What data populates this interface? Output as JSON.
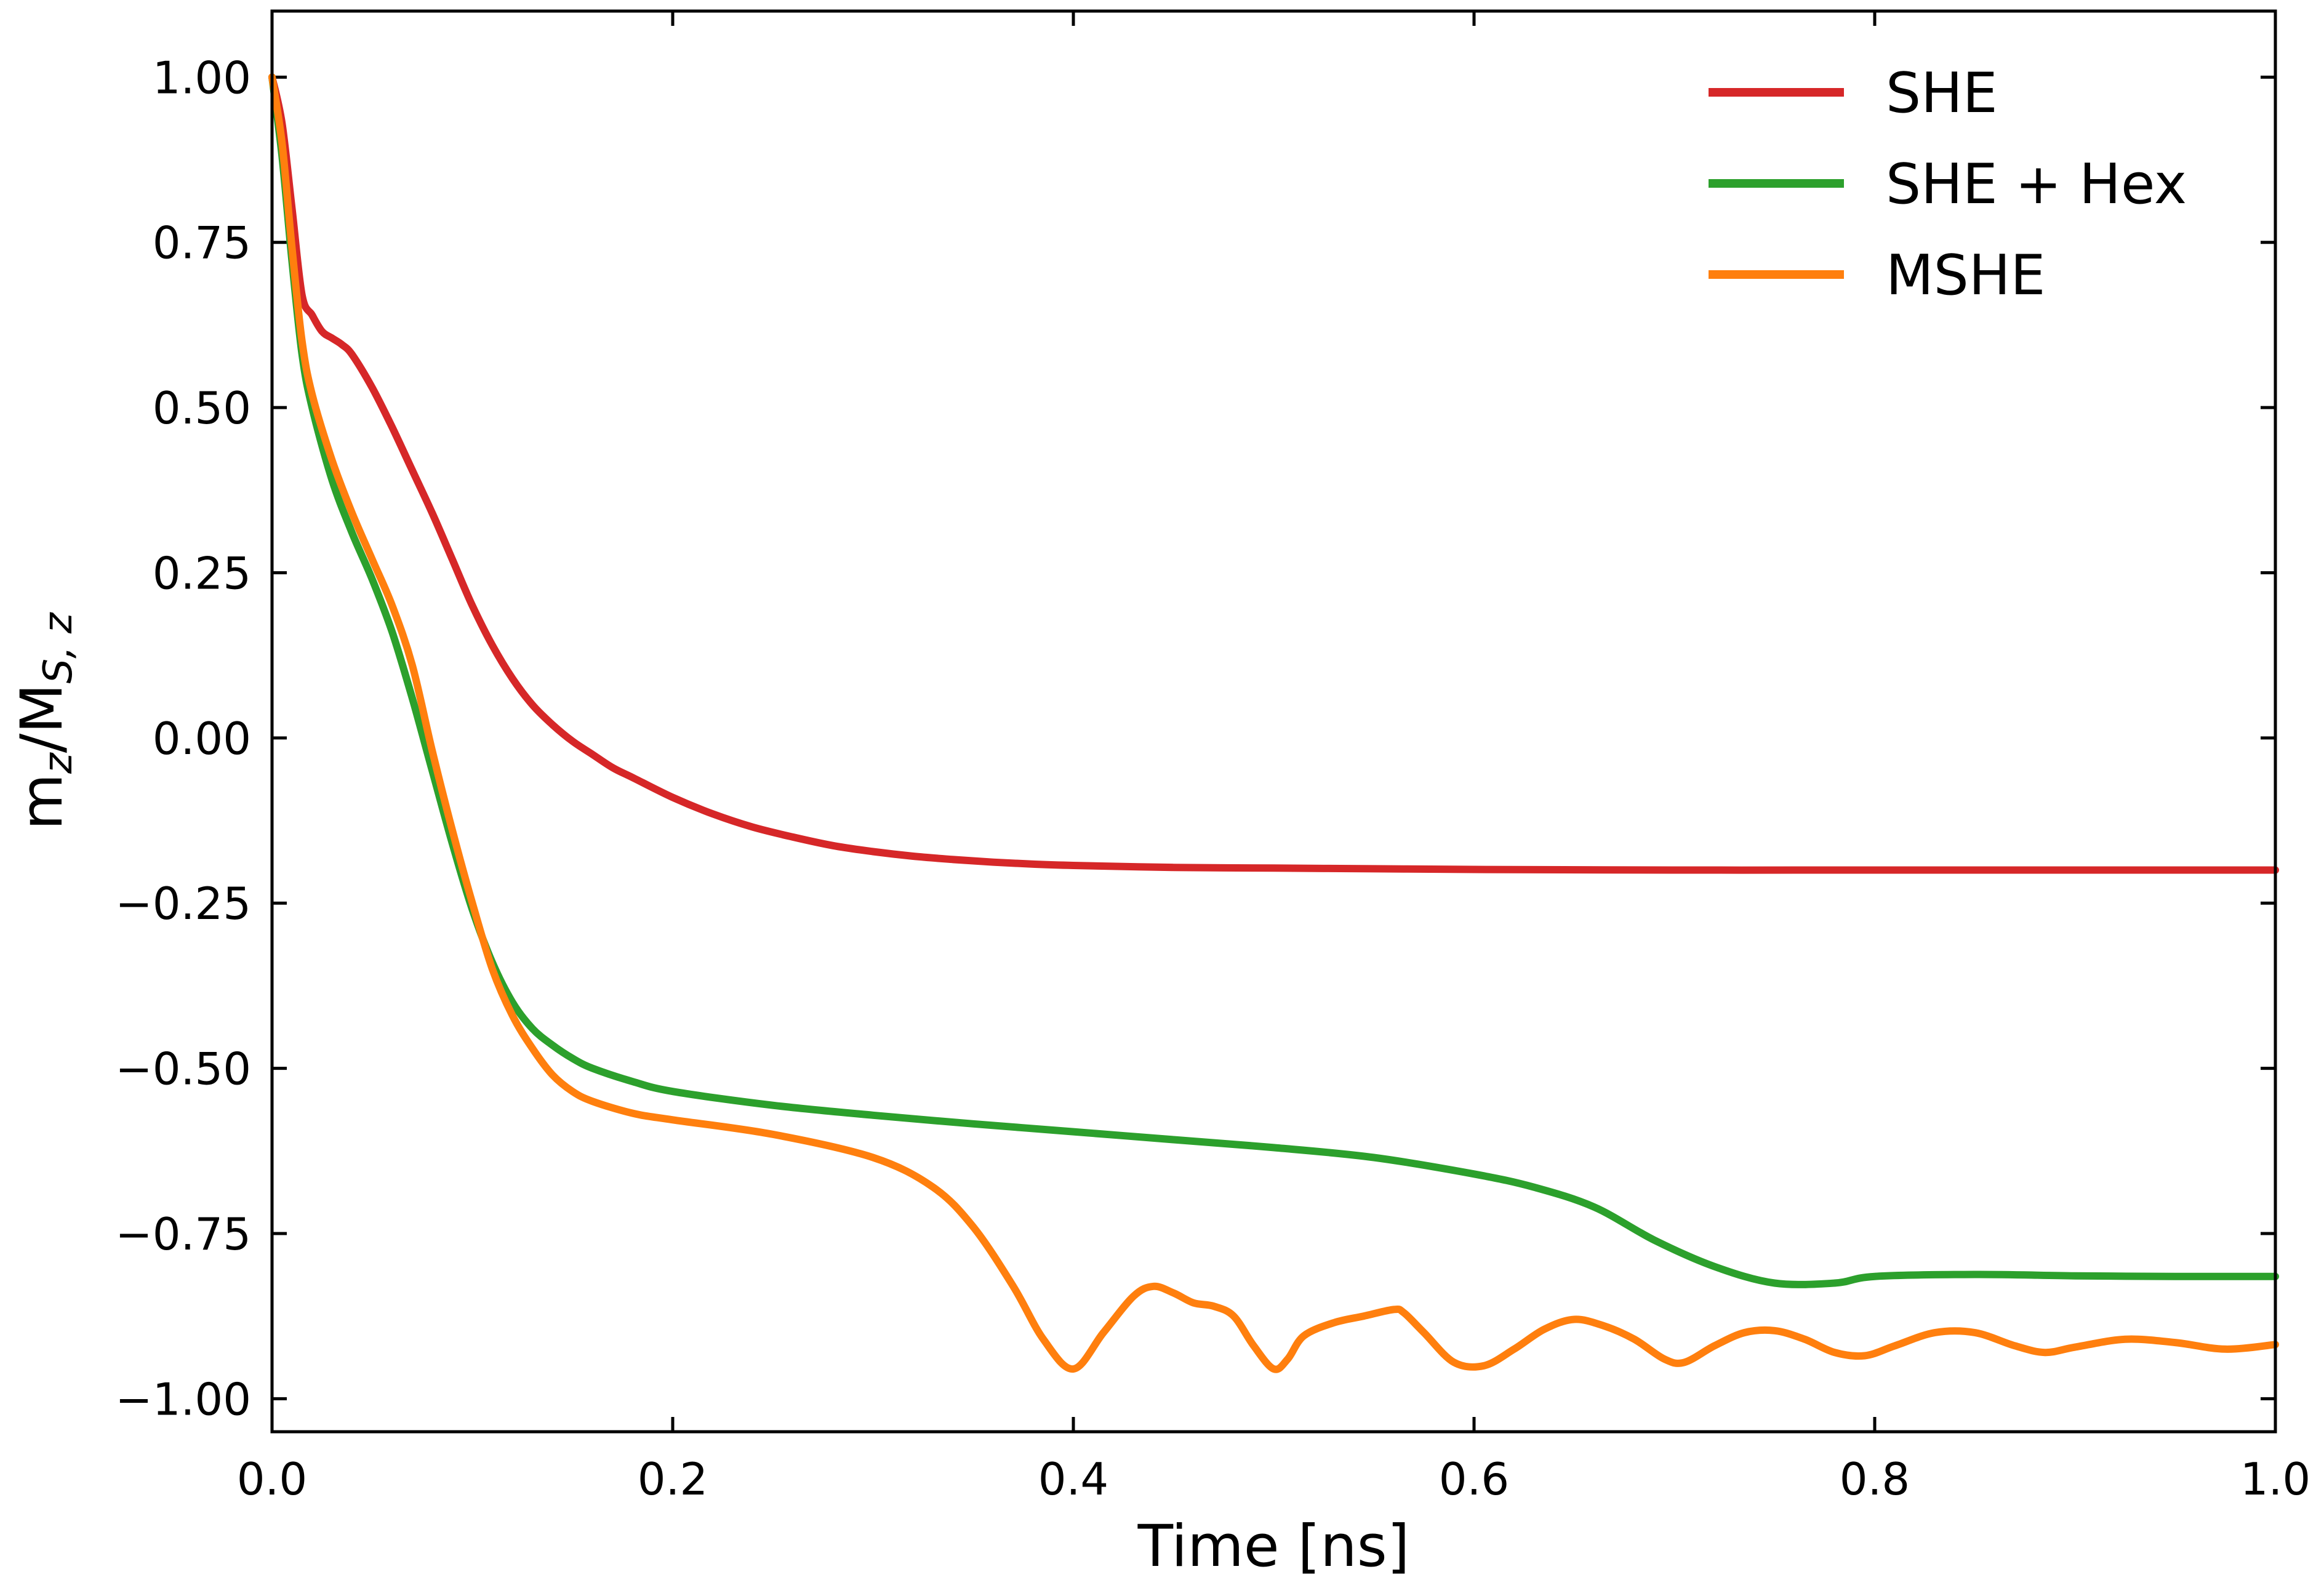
{
  "chart_data": {
    "type": "line",
    "title": "",
    "xlabel": "Time [ns]",
    "ylabel": {
      "main": "m",
      "main_sub": "z",
      "sep": "/M",
      "denom_sub": "S, z"
    },
    "xlim": [
      0.0,
      1.0
    ],
    "ylim": [
      -1.05,
      1.1
    ],
    "xticks": [
      0.0,
      0.2,
      0.4,
      0.6,
      0.8,
      1.0
    ],
    "xtick_labels": [
      "0.0",
      "0.2",
      "0.4",
      "0.6",
      "0.8",
      "1.0"
    ],
    "yticks": [
      1.0,
      0.75,
      0.5,
      0.25,
      0.0,
      -0.25,
      -0.5,
      -0.75,
      -1.0
    ],
    "ytick_labels": [
      "1.00",
      "0.75",
      "0.50",
      "0.25",
      "0.00",
      "−0.25",
      "−0.50",
      "−0.75",
      "−1.00"
    ],
    "grid": false,
    "legend_position": "top-right",
    "series": [
      {
        "name": "SHE",
        "color": "#d62728",
        "x": [
          0,
          0.005,
          0.01,
          0.015,
          0.02,
          0.025,
          0.03,
          0.035,
          0.04,
          0.05,
          0.06,
          0.07,
          0.08,
          0.09,
          0.1,
          0.11,
          0.12,
          0.13,
          0.14,
          0.15,
          0.16,
          0.17,
          0.18,
          0.2,
          0.22,
          0.24,
          0.26,
          0.28,
          0.3,
          0.32,
          0.34,
          0.36,
          0.38,
          0.4,
          0.45,
          0.5,
          0.55,
          0.6,
          0.7,
          0.8,
          0.9,
          1.0
        ],
        "y": [
          1.0,
          0.93,
          0.8,
          0.67,
          0.64,
          0.615,
          0.605,
          0.595,
          0.58,
          0.53,
          0.47,
          0.405,
          0.34,
          0.27,
          0.2,
          0.14,
          0.09,
          0.05,
          0.02,
          -0.005,
          -0.025,
          -0.045,
          -0.06,
          -0.09,
          -0.115,
          -0.135,
          -0.15,
          -0.163,
          -0.172,
          -0.179,
          -0.184,
          -0.188,
          -0.191,
          -0.193,
          -0.196,
          -0.197,
          -0.198,
          -0.199,
          -0.2,
          -0.2,
          -0.2,
          -0.2
        ]
      },
      {
        "name": "SHE + Hex",
        "color": "#2ca02c",
        "x": [
          0,
          0.005,
          0.01,
          0.015,
          0.02,
          0.03,
          0.04,
          0.05,
          0.06,
          0.07,
          0.08,
          0.09,
          0.1,
          0.11,
          0.12,
          0.13,
          0.14,
          0.15,
          0.16,
          0.18,
          0.2,
          0.25,
          0.3,
          0.35,
          0.4,
          0.45,
          0.5,
          0.55,
          0.6,
          0.63,
          0.66,
          0.69,
          0.72,
          0.75,
          0.78,
          0.8,
          0.85,
          0.9,
          0.95,
          1.0
        ],
        "y": [
          1.0,
          0.88,
          0.72,
          0.58,
          0.5,
          0.39,
          0.31,
          0.24,
          0.16,
          0.06,
          -0.05,
          -0.16,
          -0.26,
          -0.34,
          -0.4,
          -0.44,
          -0.465,
          -0.485,
          -0.5,
          -0.52,
          -0.535,
          -0.556,
          -0.571,
          -0.584,
          -0.596,
          -0.608,
          -0.62,
          -0.635,
          -0.66,
          -0.68,
          -0.71,
          -0.76,
          -0.8,
          -0.825,
          -0.825,
          -0.815,
          -0.812,
          -0.814,
          -0.815,
          -0.815
        ]
      },
      {
        "name": "MSHE",
        "color": "#ff7f0e",
        "x": [
          0,
          0.005,
          0.01,
          0.015,
          0.02,
          0.03,
          0.04,
          0.05,
          0.06,
          0.07,
          0.08,
          0.09,
          0.1,
          0.11,
          0.12,
          0.13,
          0.14,
          0.15,
          0.16,
          0.18,
          0.2,
          0.25,
          0.3,
          0.33,
          0.35,
          0.37,
          0.385,
          0.4,
          0.415,
          0.43,
          0.44,
          0.45,
          0.46,
          0.47,
          0.48,
          0.49,
          0.5,
          0.507,
          0.515,
          0.53,
          0.545,
          0.56,
          0.565,
          0.575,
          0.59,
          0.605,
          0.62,
          0.635,
          0.65,
          0.665,
          0.68,
          0.695,
          0.705,
          0.72,
          0.735,
          0.75,
          0.765,
          0.78,
          0.795,
          0.81,
          0.83,
          0.85,
          0.87,
          0.885,
          0.9,
          0.925,
          0.95,
          0.975,
          1.0
        ],
        "y": [
          1.0,
          0.9,
          0.74,
          0.6,
          0.52,
          0.42,
          0.34,
          0.27,
          0.2,
          0.11,
          -0.02,
          -0.14,
          -0.25,
          -0.35,
          -0.42,
          -0.47,
          -0.51,
          -0.535,
          -0.55,
          -0.568,
          -0.578,
          -0.6,
          -0.635,
          -0.68,
          -0.74,
          -0.83,
          -0.91,
          -0.955,
          -0.9,
          -0.845,
          -0.83,
          -0.84,
          -0.855,
          -0.86,
          -0.875,
          -0.92,
          -0.955,
          -0.94,
          -0.905,
          -0.885,
          -0.875,
          -0.865,
          -0.87,
          -0.9,
          -0.945,
          -0.95,
          -0.925,
          -0.895,
          -0.88,
          -0.89,
          -0.91,
          -0.94,
          -0.945,
          -0.92,
          -0.9,
          -0.897,
          -0.91,
          -0.93,
          -0.935,
          -0.92,
          -0.9,
          -0.9,
          -0.92,
          -0.93,
          -0.922,
          -0.91,
          -0.915,
          -0.925,
          -0.918
        ]
      }
    ]
  }
}
